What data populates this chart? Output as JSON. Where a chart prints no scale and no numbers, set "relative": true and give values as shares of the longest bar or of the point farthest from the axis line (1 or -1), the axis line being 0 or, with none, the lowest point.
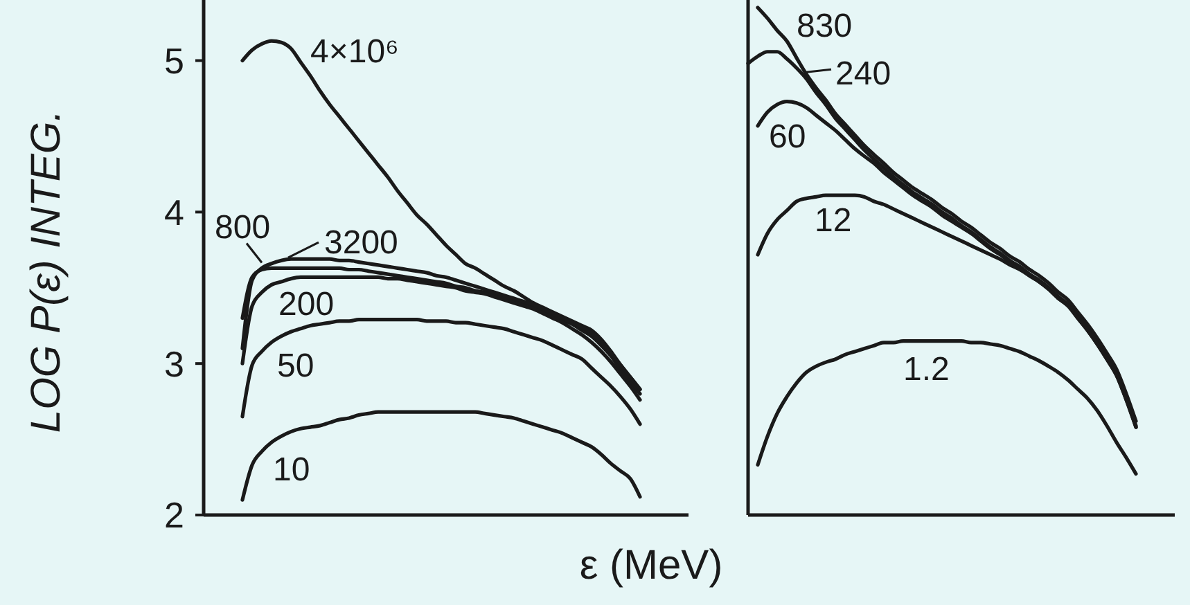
{
  "chart_data": [
    {
      "type": "line",
      "ylabel": "LOG P(ε) INTEG.",
      "xlabel": "ε (MeV)",
      "ylim": [
        2,
        5.4
      ],
      "yticks": [
        2,
        3,
        4,
        5
      ],
      "tick_labels": "y",
      "categories": [
        null,
        null,
        null,
        null,
        null,
        null,
        null,
        null,
        null,
        null,
        null,
        null,
        null,
        null,
        null,
        null,
        null,
        null,
        null,
        null,
        null,
        null,
        null,
        null,
        null,
        null,
        null,
        null,
        null,
        null,
        null,
        null,
        null,
        null,
        null,
        null,
        null,
        null,
        null,
        null,
        null,
        null,
        null,
        null,
        null,
        null,
        null,
        null,
        null,
        null,
        null
      ],
      "series": [
        {
          "name": "4×10⁶",
          "color": "#1a1a1a",
          "values": [
            null,
            null,
            null,
            null,
            5.0,
            5.07,
            5.11,
            5.13,
            5.12,
            5.08,
            4.99,
            4.9,
            4.8,
            4.71,
            4.63,
            4.55,
            4.47,
            4.39,
            4.31,
            4.23,
            4.14,
            4.06,
            3.98,
            3.92,
            3.85,
            3.78,
            3.72,
            3.66,
            3.63,
            3.59,
            3.55,
            3.51,
            3.48,
            3.44,
            3.4,
            3.37,
            3.34,
            3.31,
            3.28,
            3.25,
            3.22,
            3.16,
            3.08,
            2.99,
            2.91,
            2.83,
            null,
            null,
            null,
            null,
            null
          ]
        },
        {
          "name": "800",
          "color": "#1a1a1a",
          "values": [
            null,
            null,
            null,
            null,
            3.3,
            3.57,
            3.62,
            3.63,
            3.63,
            3.63,
            3.63,
            3.63,
            3.63,
            3.63,
            3.63,
            3.62,
            3.62,
            3.61,
            3.6,
            3.59,
            3.58,
            3.57,
            3.56,
            3.55,
            3.54,
            3.53,
            3.51,
            3.5,
            3.48,
            3.47,
            3.45,
            3.43,
            3.42,
            3.4,
            3.38,
            3.35,
            3.32,
            3.29,
            3.26,
            3.22,
            3.18,
            3.12,
            3.05,
            2.96,
            2.88,
            2.8,
            null,
            null,
            null,
            null,
            null
          ]
        },
        {
          "name": "3200",
          "color": "#1a1a1a",
          "values": [
            null,
            null,
            null,
            null,
            3.1,
            3.55,
            3.63,
            3.66,
            3.68,
            3.69,
            3.69,
            3.69,
            3.69,
            3.69,
            3.68,
            3.68,
            3.67,
            3.66,
            3.65,
            3.64,
            3.63,
            3.62,
            3.61,
            3.6,
            3.58,
            3.57,
            3.55,
            3.53,
            3.51,
            3.49,
            3.47,
            3.45,
            3.43,
            3.41,
            3.39,
            3.36,
            3.33,
            3.3,
            3.27,
            3.24,
            3.2,
            3.14,
            3.07,
            2.99,
            2.91,
            2.83,
            null,
            null,
            null,
            null,
            null
          ]
        },
        {
          "name": "200",
          "color": "#1a1a1a",
          "values": [
            null,
            null,
            null,
            null,
            3.0,
            3.38,
            3.47,
            3.52,
            3.54,
            3.56,
            3.57,
            3.57,
            3.57,
            3.57,
            3.57,
            3.57,
            3.57,
            3.57,
            3.57,
            3.56,
            3.56,
            3.55,
            3.54,
            3.53,
            3.52,
            3.51,
            3.5,
            3.48,
            3.47,
            3.46,
            3.44,
            3.42,
            3.4,
            3.38,
            3.36,
            3.33,
            3.3,
            3.27,
            3.23,
            3.19,
            3.14,
            3.08,
            3.01,
            2.93,
            2.85,
            2.76,
            null,
            null,
            null,
            null,
            null
          ]
        },
        {
          "name": "50",
          "color": "#1a1a1a",
          "values": [
            null,
            null,
            null,
            null,
            2.65,
            2.99,
            3.08,
            3.14,
            3.18,
            3.21,
            3.23,
            3.25,
            3.26,
            3.27,
            3.28,
            3.28,
            3.29,
            3.29,
            3.29,
            3.29,
            3.29,
            3.29,
            3.29,
            3.28,
            3.28,
            3.28,
            3.27,
            3.27,
            3.26,
            3.25,
            3.24,
            3.23,
            3.21,
            3.19,
            3.17,
            3.15,
            3.12,
            3.09,
            3.06,
            3.03,
            2.97,
            2.91,
            2.85,
            2.78,
            2.7,
            2.6,
            null,
            null,
            null,
            null,
            null
          ]
        },
        {
          "name": "10",
          "color": "#1a1a1a",
          "values": [
            null,
            null,
            null,
            null,
            2.1,
            2.33,
            2.42,
            2.48,
            2.52,
            2.55,
            2.57,
            2.58,
            2.59,
            2.61,
            2.63,
            2.64,
            2.66,
            2.67,
            2.68,
            2.68,
            2.68,
            2.68,
            2.68,
            2.68,
            2.68,
            2.68,
            2.68,
            2.68,
            2.68,
            2.67,
            2.66,
            2.65,
            2.64,
            2.62,
            2.6,
            2.58,
            2.56,
            2.54,
            2.51,
            2.48,
            2.45,
            2.4,
            2.34,
            2.29,
            2.24,
            2.12,
            null,
            null,
            null,
            null,
            null
          ]
        }
      ]
    },
    {
      "type": "line",
      "relative": true,
      "tick_labels": false,
      "categories": [
        null,
        null,
        null,
        null,
        null,
        null,
        null,
        null,
        null,
        null,
        null,
        null,
        null,
        null,
        null,
        null,
        null,
        null,
        null,
        null,
        null,
        null,
        null,
        null,
        null,
        null,
        null,
        null,
        null,
        null,
        null,
        null,
        null,
        null,
        null,
        null,
        null,
        null,
        null,
        null,
        null,
        null,
        null,
        null,
        null
      ],
      "series": [
        {
          "name": "830",
          "color": "#1a1a1a",
          "values": [
            null,
            1.0,
            0.979,
            0.955,
            0.934,
            0.901,
            0.869,
            0.842,
            0.818,
            0.791,
            0.77,
            0.749,
            0.728,
            0.71,
            0.693,
            0.675,
            0.66,
            0.645,
            0.633,
            0.621,
            0.606,
            0.594,
            0.579,
            0.567,
            0.552,
            0.537,
            0.525,
            0.51,
            0.499,
            0.484,
            0.472,
            0.457,
            0.439,
            0.424,
            0.4,
            0.376,
            0.349,
            0.319,
            0.287,
            0.239,
            0.185,
            null,
            null,
            null,
            null
          ]
        },
        {
          "name": "240",
          "color": "#1a1a1a",
          "values": [
            0.89,
            0.904,
            0.913,
            0.913,
            0.899,
            0.881,
            0.86,
            0.833,
            0.809,
            0.782,
            0.761,
            0.74,
            0.719,
            0.701,
            0.684,
            0.666,
            0.651,
            0.636,
            0.624,
            0.612,
            0.597,
            0.585,
            0.57,
            0.558,
            0.543,
            0.528,
            0.516,
            0.501,
            0.49,
            0.475,
            0.463,
            0.448,
            0.43,
            0.415,
            0.391,
            0.367,
            0.34,
            0.31,
            0.278,
            0.23,
            0.176,
            null,
            null,
            null,
            null
          ]
        },
        {
          "name": "60",
          "color": "#1a1a1a",
          "values": [
            null,
            0.767,
            0.794,
            0.809,
            0.815,
            0.812,
            0.803,
            0.788,
            0.773,
            0.758,
            0.74,
            0.722,
            0.707,
            0.693,
            0.675,
            0.66,
            0.645,
            0.63,
            0.618,
            0.606,
            0.591,
            0.579,
            0.567,
            0.555,
            0.54,
            0.525,
            0.513,
            0.499,
            0.487,
            0.472,
            0.46,
            0.445,
            0.427,
            0.412,
            0.388,
            0.364,
            0.337,
            0.307,
            0.275,
            0.227,
            0.173,
            null,
            null,
            null,
            null
          ]
        },
        {
          "name": "12",
          "color": "#1a1a1a",
          "values": [
            null,
            0.513,
            0.555,
            0.582,
            0.6,
            0.618,
            0.624,
            0.627,
            0.63,
            0.63,
            0.63,
            0.63,
            0.627,
            0.618,
            0.612,
            0.603,
            0.594,
            0.585,
            0.576,
            0.567,
            0.558,
            0.549,
            0.54,
            0.531,
            0.522,
            0.513,
            0.504,
            0.493,
            0.484,
            0.472,
            0.46,
            0.445,
            0.427,
            0.412,
            0.388,
            0.364,
            0.337,
            0.307,
            0.275,
            0.227,
            0.173,
            null,
            null,
            null,
            null
          ]
        },
        {
          "name": "1.2",
          "color": "#1a1a1a",
          "values": [
            null,
            0.099,
            0.155,
            0.2,
            0.233,
            0.26,
            0.281,
            0.293,
            0.301,
            0.307,
            0.316,
            0.322,
            0.328,
            0.334,
            0.34,
            0.34,
            0.343,
            0.343,
            0.343,
            0.343,
            0.343,
            0.343,
            0.343,
            0.34,
            0.34,
            0.337,
            0.334,
            0.328,
            0.322,
            0.313,
            0.304,
            0.293,
            0.281,
            0.266,
            0.248,
            0.23,
            0.206,
            0.176,
            0.143,
            0.113,
            0.081,
            null,
            null,
            null,
            null
          ]
        }
      ]
    }
  ]
}
